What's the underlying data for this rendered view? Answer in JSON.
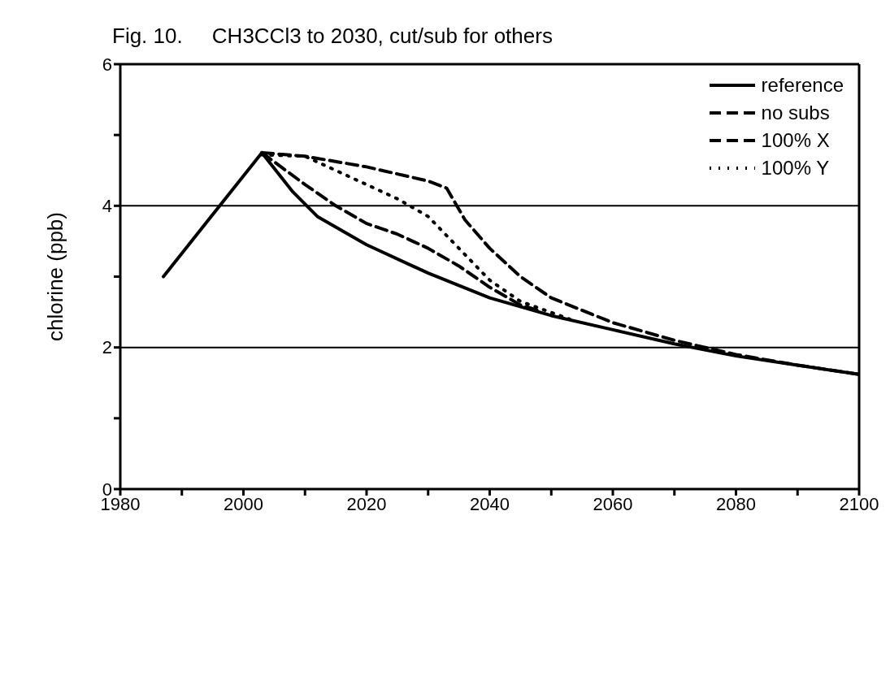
{
  "chart_data": {
    "type": "line",
    "title": "Fig. 10.     CH3CCl3 to 2030, cut/sub for others",
    "ylabel": "chlorine (ppb)",
    "xlim": [
      1980,
      2100
    ],
    "xticks": [
      1980,
      {
        "value": 1990,
        "label": null
      },
      2000,
      {
        "value": 2010,
        "label": null
      },
      2020,
      {
        "value": 2030,
        "label": null
      },
      2040,
      {
        "value": 2050,
        "label": null
      },
      2060,
      {
        "value": 2070,
        "label": null
      },
      2080,
      {
        "value": 2090,
        "label": null
      },
      2100
    ],
    "ylim": [
      0,
      6
    ],
    "yticks": [
      0,
      {
        "value": 1,
        "label": null
      },
      2,
      {
        "value": 3,
        "label": null
      },
      4,
      {
        "value": 5,
        "label": null
      },
      6
    ],
    "ref_lines": [
      {
        "axis": "y",
        "value": 2,
        "color": "#000000"
      },
      {
        "axis": "y",
        "value": 4,
        "color": "#000000"
      }
    ],
    "legend": "top right",
    "marker": "none",
    "series": [
      {
        "name": "reference",
        "color": "#000000",
        "line_style": "solid",
        "x": [
          1987,
          2003,
          2008,
          2012,
          2020,
          2030,
          2040,
          2050,
          2060,
          2070,
          2080,
          2090,
          2100
        ],
        "values": [
          3.0,
          4.75,
          4.2,
          3.85,
          3.45,
          3.05,
          2.7,
          2.45,
          2.25,
          2.05,
          1.88,
          1.75,
          1.62
        ]
      },
      {
        "name": "no subs",
        "color": "#000000",
        "line_style": "dashed",
        "x": [
          2003,
          2010,
          2015,
          2020,
          2025,
          2030,
          2035,
          2040,
          2045,
          2048
        ],
        "values": [
          4.75,
          4.3,
          4.0,
          3.75,
          3.6,
          3.4,
          3.15,
          2.85,
          2.6,
          2.52
        ]
      },
      {
        "name": "100% X",
        "color": "#000000",
        "line_style": "dashed",
        "x": [
          2003,
          2010,
          2020,
          2025,
          2030,
          2033,
          2036,
          2040,
          2045,
          2050,
          2060,
          2070,
          2080,
          2090,
          2100
        ],
        "values": [
          4.75,
          4.7,
          4.55,
          4.45,
          4.35,
          4.25,
          3.8,
          3.4,
          3.0,
          2.7,
          2.35,
          2.1,
          1.9,
          1.75,
          1.62
        ]
      },
      {
        "name": "100% Y",
        "color": "#000000",
        "line_style": "dotted",
        "x": [
          2003,
          2010,
          2015,
          2020,
          2025,
          2030,
          2035,
          2040,
          2045,
          2053
        ],
        "values": [
          4.72,
          4.7,
          4.5,
          4.3,
          4.1,
          3.85,
          3.4,
          2.95,
          2.65,
          2.4
        ]
      }
    ]
  }
}
